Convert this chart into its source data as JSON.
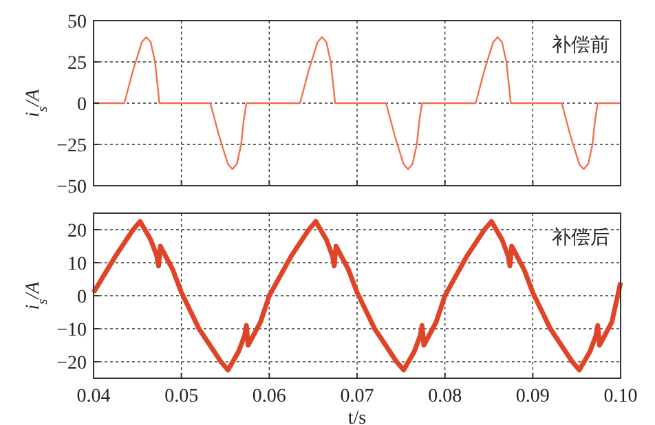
{
  "chart_data": [
    {
      "type": "line",
      "ylabel": "i$_{s}$/A",
      "xlim": [
        0.04,
        0.1
      ],
      "xticks": [
        0.04,
        0.05,
        0.06,
        0.07,
        0.08,
        0.09,
        0.1
      ],
      "ylim": [
        -50,
        50
      ],
      "yticks": [
        {
          "value": -50,
          "label": "−50"
        },
        {
          "value": -25,
          "label": "−25"
        },
        0,
        25,
        50
      ],
      "grid": true,
      "tick_labels": "y",
      "annotations": [
        "补偿前"
      ],
      "series": [
        {
          "color": "#f07050",
          "x": [
            0.04,
            0.0435,
            0.0445,
            0.0455,
            0.046,
            0.0465,
            0.047,
            0.0473,
            0.0475,
            0.0533,
            0.0543,
            0.0553,
            0.0558,
            0.0563,
            0.0568,
            0.0571,
            0.0574,
            0.0635,
            0.0645,
            0.0655,
            0.066,
            0.0665,
            0.067,
            0.0673,
            0.0675,
            0.0733,
            0.0743,
            0.0753,
            0.0758,
            0.0763,
            0.0768,
            0.0771,
            0.0774,
            0.0835,
            0.0845,
            0.0855,
            0.086,
            0.0865,
            0.087,
            0.0873,
            0.0875,
            0.0933,
            0.0943,
            0.0953,
            0.0958,
            0.0963,
            0.0968,
            0.0971,
            0.0974,
            0.1
          ],
          "values": [
            0,
            0,
            20,
            37,
            40,
            37,
            25,
            10,
            0,
            0,
            -20,
            -37,
            -40,
            -37,
            -25,
            -10,
            0,
            0,
            20,
            37,
            40,
            37,
            25,
            10,
            0,
            0,
            -20,
            -37,
            -40,
            -37,
            -25,
            -10,
            0,
            0,
            20,
            37,
            40,
            37,
            25,
            10,
            0,
            0,
            -20,
            -37,
            -40,
            -37,
            -25,
            -10,
            0,
            0
          ]
        }
      ]
    },
    {
      "type": "line",
      "ylabel": "i$_{s}$/A",
      "xlabel": "t/s",
      "xlim": [
        0.04,
        0.1
      ],
      "xticks": [
        0.04,
        0.05,
        0.06,
        0.07,
        0.08,
        0.09,
        {
          "value": 0.1,
          "label": "0.10"
        }
      ],
      "ylim": [
        -25,
        25
      ],
      "yticks": [
        {
          "value": -20,
          "label": "−20"
        },
        {
          "value": -10,
          "label": "−10"
        },
        0,
        10,
        20
      ],
      "grid": true,
      "annotations": [
        "补偿后"
      ],
      "series": [
        {
          "color": "#e04428",
          "x": [
            0.04,
            0.0425,
            0.0445,
            0.0453,
            0.0465,
            0.0472,
            0.0474,
            0.0476,
            0.049,
            0.05,
            0.052,
            0.0545,
            0.0553,
            0.0565,
            0.0572,
            0.0574,
            0.0576,
            0.059,
            0.06,
            0.0625,
            0.0645,
            0.0653,
            0.0665,
            0.0672,
            0.0674,
            0.0676,
            0.069,
            0.07,
            0.072,
            0.0745,
            0.0753,
            0.0765,
            0.0772,
            0.0774,
            0.0776,
            0.079,
            0.08,
            0.0825,
            0.0845,
            0.0853,
            0.0865,
            0.0872,
            0.0874,
            0.0876,
            0.089,
            0.09,
            0.092,
            0.0945,
            0.0953,
            0.0965,
            0.0972,
            0.0974,
            0.0976,
            0.099,
            0.1
          ],
          "values": [
            1,
            12,
            20,
            22.5,
            17,
            12,
            9,
            15,
            8,
            1,
            -10,
            -20,
            -22.5,
            -17,
            -12,
            -9,
            -15,
            -8,
            0,
            12,
            20,
            22.5,
            17,
            12,
            9,
            15,
            8,
            1,
            -10,
            -20,
            -22.5,
            -17,
            -12,
            -9,
            -15,
            -8,
            0,
            12,
            20,
            22.5,
            17,
            12,
            9,
            15,
            8,
            1,
            -10,
            -20,
            -22.5,
            -17,
            -12,
            -9,
            -15,
            -8,
            4
          ]
        }
      ]
    }
  ]
}
